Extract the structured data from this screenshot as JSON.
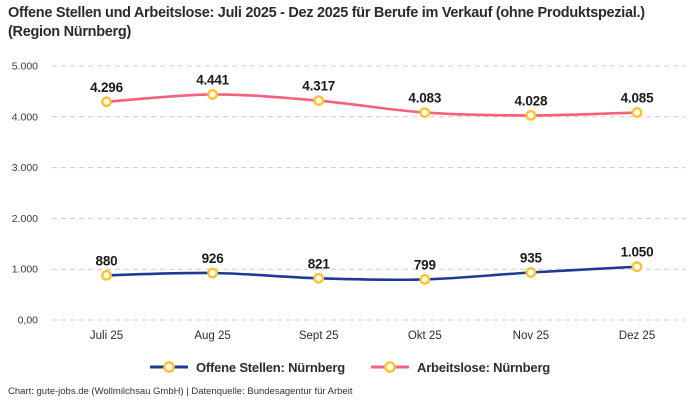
{
  "header": {
    "title": "Offene Stellen und Arbeitslose: Juli 2025 - Dez 2025 für Berufe im Verkauf (ohne Produktspezial.) (Region Nürnberg)"
  },
  "chart_data": {
    "type": "line",
    "title": "Offene Stellen und Arbeitslose: Juli 2025 - Dez 2025 für Berufe im Verkauf (ohne Produktspezial.) (Region Nürnberg)",
    "categories": [
      "Juli 25",
      "Aug 25",
      "Sept 25",
      "Okt 25",
      "Nov 25",
      "Dez 25"
    ],
    "xlabel": "",
    "ylabel": "",
    "ylim": [
      0,
      5000
    ],
    "grid": true,
    "grid_style": "dashed",
    "legend_position": "bottom",
    "y_ticks": {
      "values": [
        5000,
        4000,
        3000,
        2000,
        1000,
        0
      ],
      "labels": [
        "5.000",
        "4.000",
        "3.000",
        "2.000",
        "1.000",
        "0,00"
      ]
    },
    "series": [
      {
        "name": "Offene Stellen: Nürnberg",
        "color": "#1E3A93",
        "values": [
          880,
          926,
          821,
          799,
          935,
          1050
        ],
        "labels": [
          "880",
          "926",
          "821",
          "799",
          "935",
          "1.050"
        ]
      },
      {
        "name": "Arbeitslose: Nürnberg",
        "color": "#F5607C",
        "values": [
          4296,
          4441,
          4317,
          4083,
          4028,
          4085
        ],
        "labels": [
          "4.296",
          "4.441",
          "4.317",
          "4.083",
          "4.028",
          "4.085"
        ]
      }
    ],
    "marker": {
      "shape": "circle",
      "stroke": "#FCC32D",
      "fill": "#FFFFFF"
    },
    "colors": {
      "gridline": "#cccccc",
      "tick_text": "#3b3b3b",
      "value_label_text": "#1a1a1a"
    }
  },
  "footer": {
    "credit": "Chart: gute-jobs.de (Wollmilchsau GmbH) | Datenquelle: Bundesagentur für Arbeit"
  }
}
